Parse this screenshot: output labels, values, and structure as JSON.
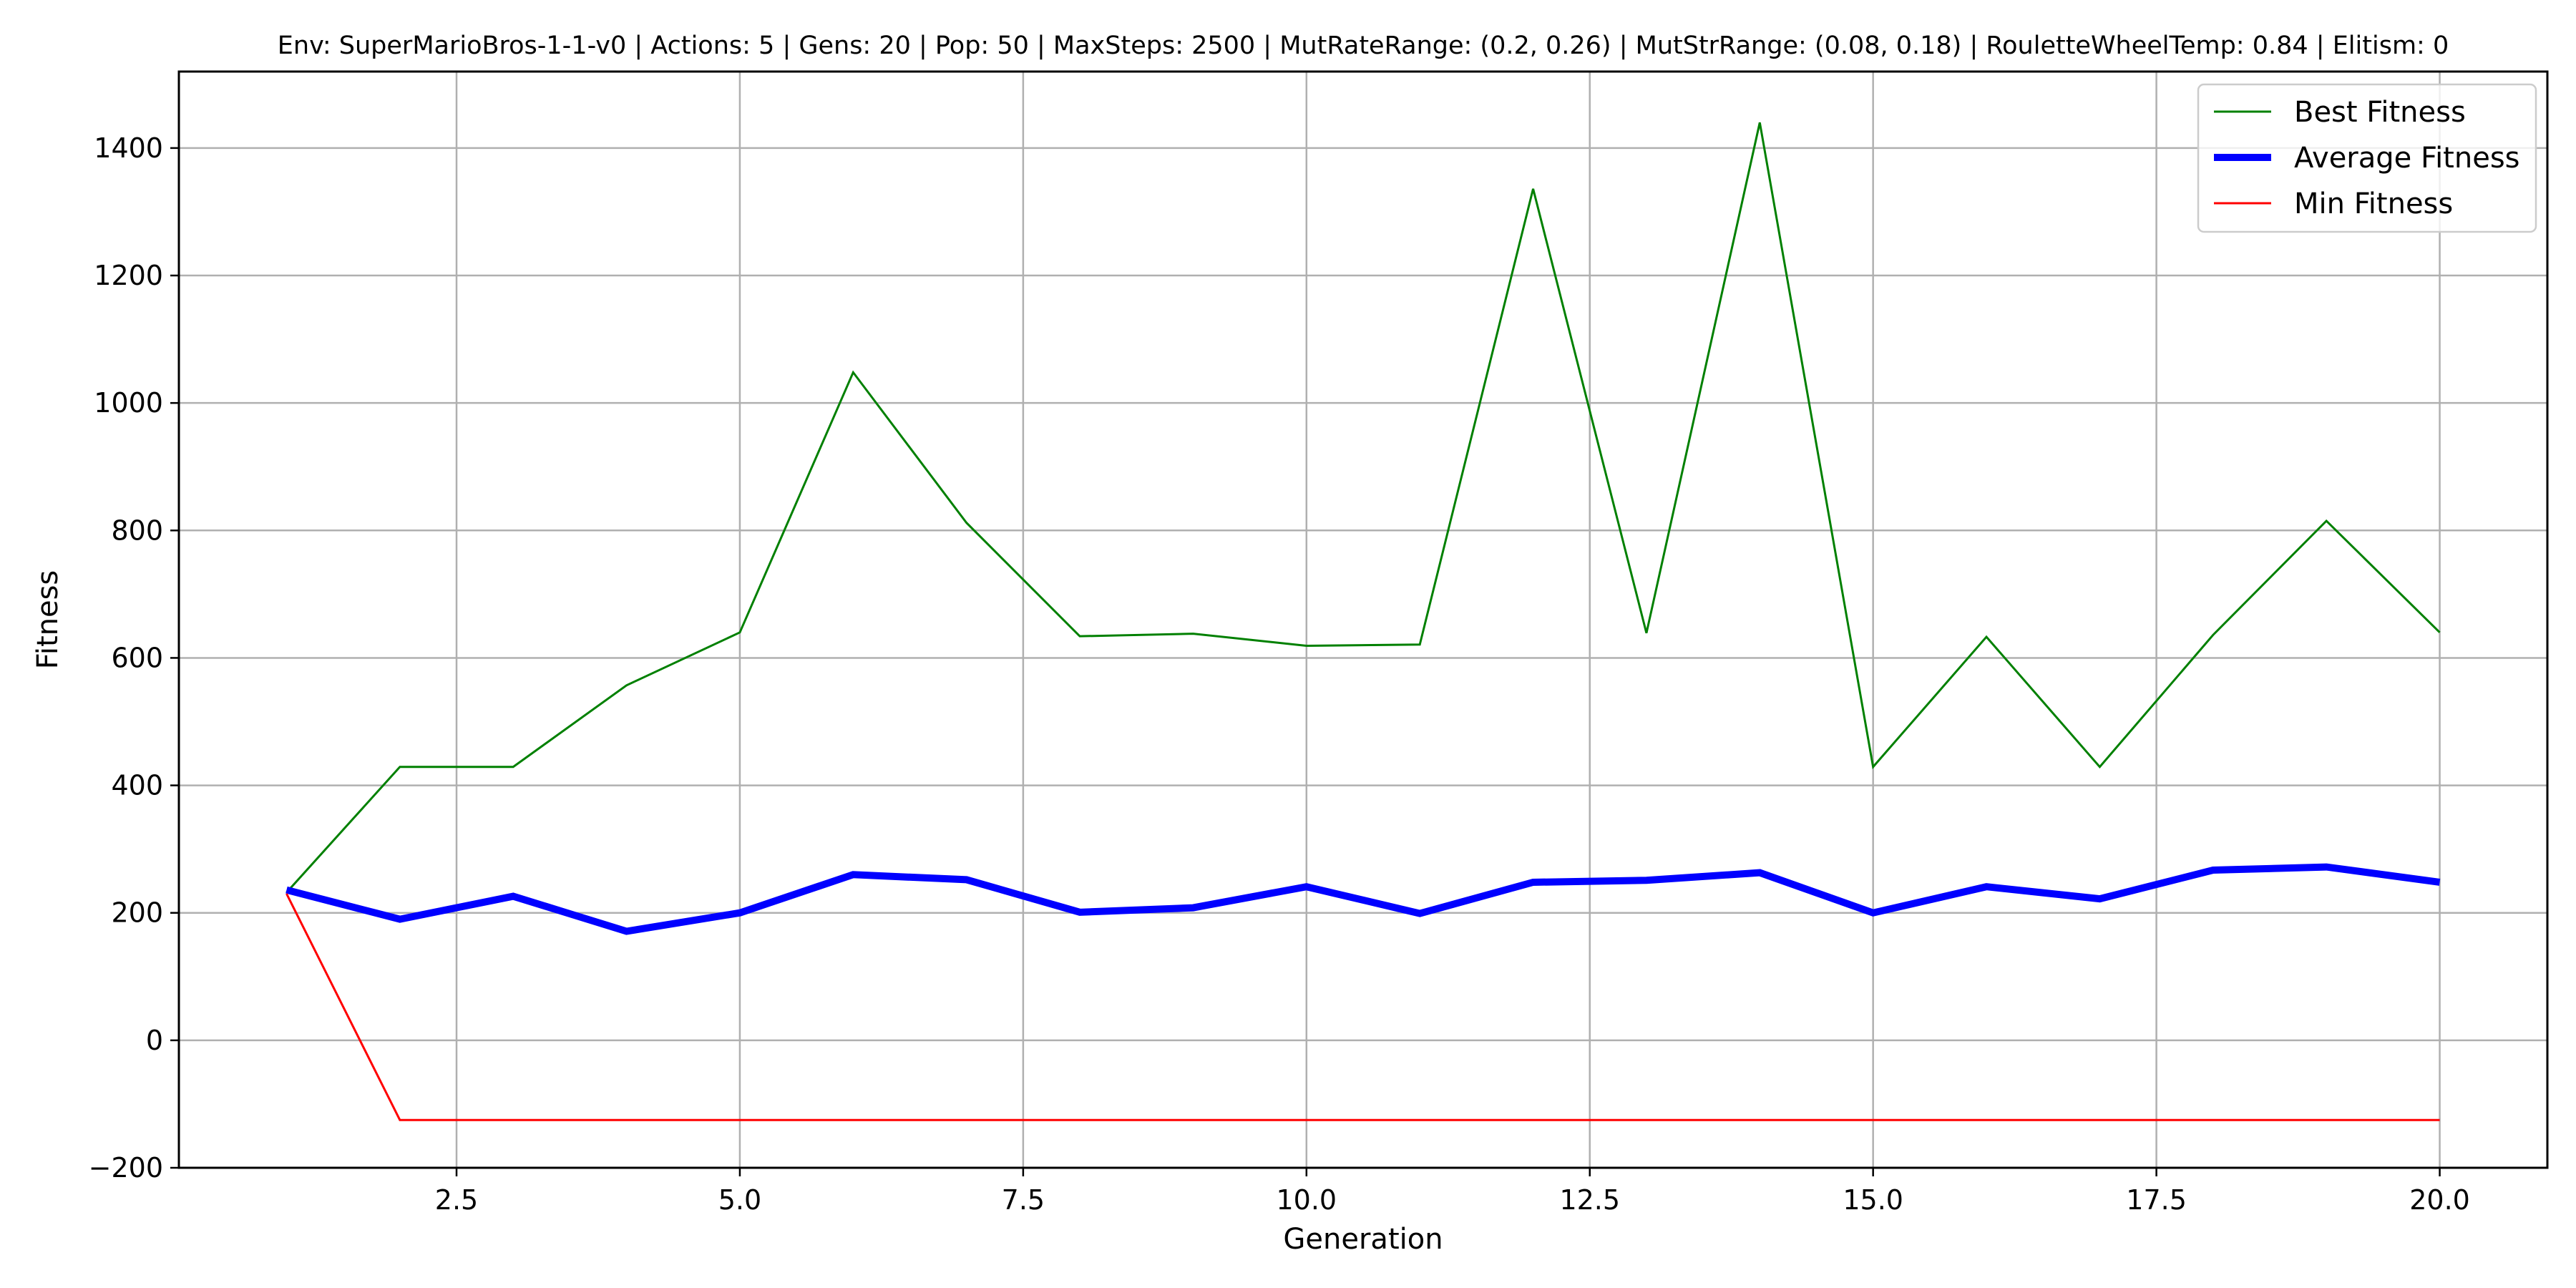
{
  "chart_data": {
    "type": "line",
    "title": "Env: SuperMarioBros-1-1-v0 | Actions: 5 | Gens: 20 | Pop: 50 | MaxSteps: 2500 | MutRateRange: (0.2, 0.26) | MutStrRange: (0.08, 0.18) | RouletteWheelTemp: 0.84 | Elitism: 0",
    "xlabel": "Generation",
    "ylabel": "Fitness",
    "xlim": [
      0.05,
      20.95
    ],
    "ylim": [
      -200,
      1520
    ],
    "x_ticks": [
      "2.5",
      "5.0",
      "7.5",
      "10.0",
      "12.5",
      "15.0",
      "17.5",
      "20.0"
    ],
    "y_ticks": [
      "−200",
      "0",
      "200",
      "400",
      "600",
      "800",
      "1000",
      "1200",
      "1400"
    ],
    "grid": true,
    "legend_position": "top-right",
    "x": [
      1,
      2,
      3,
      4,
      5,
      6,
      7,
      8,
      9,
      10,
      11,
      12,
      13,
      14,
      15,
      16,
      17,
      18,
      19,
      20
    ],
    "series": [
      {
        "name": "Best Fitness",
        "color": "#008000",
        "values": [
          232,
          429,
          429,
          557,
          640,
          1048,
          812,
          634,
          638,
          619,
          621,
          1336,
          639,
          1440,
          429,
          633,
          429,
          636,
          815,
          640
        ]
      },
      {
        "name": "Average Fitness",
        "color": "#0000ff",
        "values": [
          236,
          190,
          226,
          171,
          200,
          260,
          252,
          201,
          208,
          241,
          199,
          248,
          251,
          263,
          200,
          241,
          222,
          267,
          272,
          248
        ]
      },
      {
        "name": "Min Fitness",
        "color": "#ff0000",
        "values": [
          230,
          -125,
          -125,
          -125,
          -125,
          -125,
          -125,
          -125,
          -125,
          -125,
          -125,
          -125,
          -125,
          -125,
          -125,
          -125,
          -125,
          -125,
          -125,
          -125
        ]
      }
    ]
  }
}
